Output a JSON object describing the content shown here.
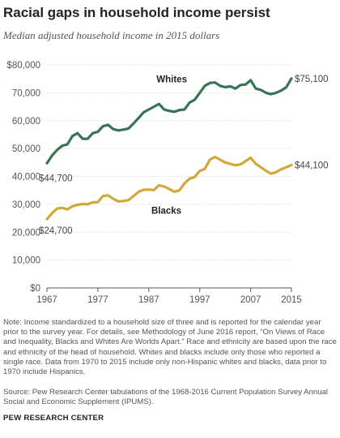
{
  "header": {
    "title": "Racial gaps in household income persist",
    "subtitle": "Median adjusted household income in 2015 dollars"
  },
  "footer": {
    "note": "Note: Income standardized to a household size of three and is reported for the calendar year prior to the survey year. For details, see Methodology of June 2016 report, “On Views of Race and Inequality, Blacks and Whites Are Worlds Apart.” Race and ethnicity are based upon the race and ethnicity of the head of household. Whites and blacks include only those who reported a single race. Data from 1970 to 2015 include only non-Hispanic whites and blacks, data prior to 1970 include Hispanics.",
    "source": "Source: Pew Research Center tabulations of the 1968-2016 Current Population Survey Annual Social and Economic Supplement (IPUMS).",
    "brand": "PEW RESEARCH CENTER"
  },
  "chart_data": {
    "type": "line",
    "title": "Racial gaps in household income persist",
    "subtitle": "Median adjusted household income in 2015 dollars",
    "xlabel": "",
    "ylabel": "",
    "xlim": [
      1967,
      2015
    ],
    "ylim": [
      0,
      80000
    ],
    "x_ticks": [
      1967,
      1977,
      1987,
      1997,
      2007,
      2015
    ],
    "x_tick_labels": [
      "1967",
      "1977",
      "1987",
      "1997",
      "2007",
      "2015"
    ],
    "y_ticks": [
      0,
      10000,
      20000,
      30000,
      40000,
      50000,
      60000,
      70000,
      80000
    ],
    "y_tick_labels": [
      "$0",
      "10,000",
      "20,000",
      "30,000",
      "40,000",
      "50,000",
      "60,000",
      "70,000",
      "$80,000"
    ],
    "grid": "horizontal",
    "x": [
      1967,
      1968,
      1969,
      1970,
      1971,
      1972,
      1973,
      1974,
      1975,
      1976,
      1977,
      1978,
      1979,
      1980,
      1981,
      1982,
      1983,
      1984,
      1985,
      1986,
      1987,
      1988,
      1989,
      1990,
      1991,
      1992,
      1993,
      1994,
      1995,
      1996,
      1997,
      1998,
      1999,
      2000,
      2001,
      2002,
      2003,
      2004,
      2005,
      2006,
      2007,
      2008,
      2009,
      2010,
      2011,
      2012,
      2013,
      2014,
      2015
    ],
    "series": [
      {
        "name": "Whites",
        "color": "#3a7358",
        "end_label": "$75,100",
        "start_label": "$44,700",
        "values": [
          44700,
          47500,
          49500,
          51000,
          51500,
          54500,
          55500,
          53500,
          53500,
          55500,
          56000,
          58000,
          58500,
          57000,
          56500,
          56800,
          57200,
          59000,
          61000,
          63000,
          64000,
          65000,
          66000,
          64000,
          63500,
          63200,
          63800,
          64000,
          66500,
          67500,
          70000,
          72500,
          73500,
          73700,
          72500,
          72000,
          72300,
          71500,
          72800,
          73000,
          74500,
          71500,
          71000,
          70000,
          69500,
          70000,
          70800,
          72000,
          75100
        ]
      },
      {
        "name": "Blacks",
        "color": "#d1a83a",
        "end_label": "$44,100",
        "start_label": "$24,700",
        "values": [
          24700,
          26800,
          28500,
          28700,
          28200,
          29300,
          29800,
          30100,
          30000,
          30700,
          30800,
          33000,
          33200,
          32000,
          31000,
          31200,
          31500,
          33000,
          34500,
          35200,
          35300,
          35100,
          36800,
          36400,
          35500,
          34500,
          35000,
          37500,
          39200,
          39800,
          42000,
          42700,
          46000,
          47000,
          46000,
          45000,
          44500,
          44000,
          44300,
          45500,
          46700,
          44500,
          43300,
          42000,
          41000,
          41500,
          42600,
          43300,
          44100
        ]
      }
    ]
  }
}
